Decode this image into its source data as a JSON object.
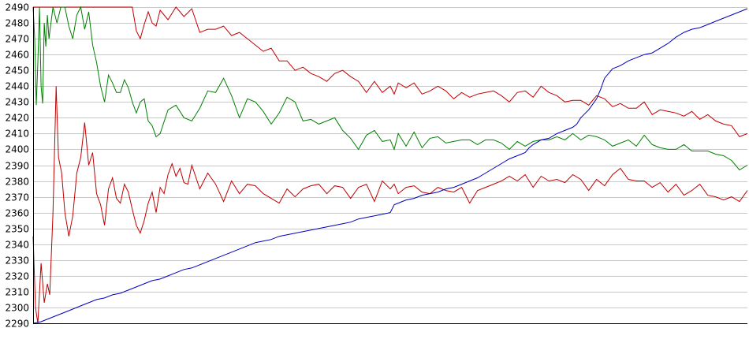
{
  "chart_data": {
    "type": "line",
    "title": "",
    "xlabel": "",
    "ylabel": "",
    "ylim": [
      2290,
      2490
    ],
    "xlim": [
      0,
      900
    ],
    "y_ticks": [
      2290,
      2300,
      2310,
      2320,
      2330,
      2340,
      2350,
      2360,
      2370,
      2380,
      2390,
      2400,
      2410,
      2420,
      2430,
      2440,
      2450,
      2460,
      2470,
      2480,
      2490
    ],
    "grid": "horizontal",
    "legend": "none",
    "series": [
      {
        "color": "#c00000",
        "x": [
          0,
          3,
          6,
          10,
          14,
          18,
          21,
          25,
          29,
          32,
          36,
          40,
          45,
          50,
          55,
          60,
          65,
          70,
          75,
          80,
          85,
          90,
          95,
          100,
          105,
          110,
          115,
          120,
          125,
          130,
          135,
          140,
          145,
          150,
          155,
          160,
          165,
          170,
          175,
          180,
          185,
          190,
          195,
          200,
          210,
          220,
          230,
          240,
          250,
          260,
          270,
          280,
          290,
          300,
          310,
          320,
          330,
          340,
          350,
          360,
          370,
          380,
          390,
          400,
          410,
          420,
          430,
          440,
          450,
          455,
          460,
          470,
          480,
          490,
          500,
          510,
          520,
          530,
          540,
          550,
          560,
          570,
          580,
          590,
          600,
          610,
          620,
          630,
          640,
          650,
          660,
          670,
          680,
          690,
          700,
          710,
          720,
          730,
          740,
          750,
          760,
          770,
          780,
          790,
          800,
          810,
          820,
          830,
          840,
          850,
          860,
          870,
          880,
          890,
          900
        ],
        "values": [
          2345,
          2300,
          2290,
          2328,
          2303,
          2315,
          2308,
          2360,
          2440,
          2395,
          2385,
          2360,
          2345,
          2358,
          2385,
          2395,
          2417,
          2390,
          2398,
          2372,
          2365,
          2352,
          2375,
          2382,
          2369,
          2366,
          2378,
          2373,
          2362,
          2352,
          2347,
          2355,
          2366,
          2373,
          2360,
          2376,
          2372,
          2384,
          2391,
          2383,
          2388,
          2379,
          2378,
          2390,
          2375,
          2385,
          2378,
          2367,
          2380,
          2372,
          2378,
          2377,
          2372,
          2369,
          2366,
          2375,
          2370,
          2375,
          2377,
          2378,
          2372,
          2377,
          2376,
          2369,
          2376,
          2378,
          2367,
          2380,
          2375,
          2378,
          2372,
          2376,
          2377,
          2373,
          2372,
          2376,
          2374,
          2373,
          2376,
          2366,
          2374,
          2376,
          2378,
          2380,
          2383,
          2380,
          2384,
          2376,
          2383,
          2380,
          2381,
          2379,
          2384,
          2381,
          2374,
          2381,
          2377,
          2384,
          2388,
          2381,
          2380,
          2380,
          2376,
          2379,
          2373,
          2378,
          2371,
          2374,
          2378,
          2371,
          2370,
          2368,
          2370,
          2367,
          2374
        ]
      },
      {
        "color": "#c00000",
        "x": [
          0,
          10,
          20,
          30,
          40,
          50,
          60,
          70,
          80,
          90,
          100,
          110,
          120,
          125,
          130,
          135,
          140,
          145,
          150,
          155,
          160,
          170,
          180,
          190,
          200,
          210,
          220,
          230,
          240,
          250,
          260,
          270,
          280,
          290,
          300,
          310,
          320,
          330,
          340,
          350,
          360,
          370,
          380,
          390,
          400,
          410,
          420,
          430,
          440,
          450,
          455,
          460,
          470,
          480,
          490,
          500,
          510,
          520,
          530,
          540,
          550,
          560,
          570,
          580,
          590,
          600,
          610,
          620,
          630,
          640,
          650,
          660,
          670,
          680,
          690,
          700,
          710,
          720,
          730,
          740,
          750,
          760,
          770,
          780,
          790,
          800,
          810,
          820,
          830,
          840,
          850,
          860,
          870,
          880,
          890,
          900
        ],
        "values": [
          2490,
          2490,
          2490,
          2490,
          2490,
          2490,
          2490,
          2490,
          2490,
          2490,
          2490,
          2490,
          2490,
          2490,
          2475,
          2470,
          2479,
          2487,
          2480,
          2478,
          2488,
          2482,
          2490,
          2484,
          2489,
          2474,
          2476,
          2476,
          2478,
          2472,
          2474,
          2470,
          2466,
          2462,
          2464,
          2456,
          2456,
          2450,
          2452,
          2448,
          2446,
          2443,
          2448,
          2450,
          2446,
          2443,
          2436,
          2443,
          2436,
          2440,
          2435,
          2442,
          2439,
          2442,
          2435,
          2437,
          2440,
          2437,
          2432,
          2436,
          2433,
          2435,
          2436,
          2437,
          2434,
          2430,
          2436,
          2437,
          2433,
          2440,
          2436,
          2434,
          2430,
          2431,
          2431,
          2428,
          2434,
          2432,
          2427,
          2429,
          2426,
          2426,
          2430,
          2422,
          2425,
          2424,
          2423,
          2421,
          2424,
          2419,
          2422,
          2418,
          2416,
          2415,
          2408,
          2410
        ]
      },
      {
        "color": "#008000",
        "x": [
          0,
          2,
          4,
          6,
          8,
          10,
          12,
          14,
          16,
          18,
          20,
          25,
          30,
          35,
          40,
          45,
          50,
          55,
          60,
          65,
          70,
          75,
          80,
          85,
          90,
          95,
          100,
          105,
          110,
          115,
          120,
          125,
          130,
          135,
          140,
          145,
          150,
          155,
          160,
          170,
          180,
          190,
          200,
          210,
          220,
          230,
          240,
          250,
          260,
          270,
          280,
          290,
          300,
          310,
          320,
          330,
          340,
          350,
          360,
          370,
          380,
          390,
          400,
          410,
          420,
          430,
          440,
          450,
          455,
          460,
          470,
          480,
          490,
          500,
          510,
          520,
          530,
          540,
          550,
          560,
          570,
          580,
          590,
          600,
          610,
          620,
          630,
          640,
          650,
          660,
          670,
          680,
          690,
          700,
          710,
          720,
          730,
          740,
          750,
          760,
          770,
          780,
          790,
          800,
          810,
          820,
          830,
          840,
          850,
          860,
          870,
          880,
          890,
          900
        ],
        "values": [
          2490,
          2470,
          2428,
          2455,
          2490,
          2440,
          2429,
          2480,
          2465,
          2485,
          2470,
          2490,
          2480,
          2490,
          2490,
          2478,
          2470,
          2485,
          2490,
          2476,
          2487,
          2466,
          2455,
          2440,
          2430,
          2447,
          2442,
          2436,
          2436,
          2444,
          2439,
          2430,
          2423,
          2430,
          2432,
          2418,
          2415,
          2408,
          2410,
          2425,
          2428,
          2420,
          2418,
          2426,
          2437,
          2436,
          2445,
          2434,
          2420,
          2432,
          2430,
          2424,
          2416,
          2423,
          2433,
          2430,
          2418,
          2419,
          2416,
          2418,
          2420,
          2412,
          2407,
          2400,
          2409,
          2412,
          2405,
          2406,
          2400,
          2410,
          2402,
          2411,
          2401,
          2407,
          2408,
          2404,
          2405,
          2406,
          2406,
          2403,
          2406,
          2406,
          2404,
          2400,
          2405,
          2402,
          2405,
          2406,
          2406,
          2408,
          2406,
          2410,
          2406,
          2409,
          2408,
          2406,
          2402,
          2404,
          2406,
          2402,
          2409,
          2403,
          2401,
          2400,
          2400,
          2403,
          2399,
          2399,
          2399,
          2397,
          2396,
          2393,
          2387,
          2390
        ]
      },
      {
        "color": "#0000c0",
        "x": [
          0,
          10,
          20,
          30,
          40,
          50,
          60,
          70,
          80,
          90,
          100,
          110,
          120,
          130,
          140,
          150,
          160,
          170,
          180,
          190,
          200,
          210,
          220,
          230,
          240,
          250,
          260,
          270,
          280,
          290,
          300,
          310,
          320,
          330,
          340,
          350,
          360,
          370,
          380,
          390,
          400,
          410,
          420,
          430,
          440,
          450,
          455,
          460,
          470,
          480,
          490,
          500,
          510,
          520,
          530,
          540,
          550,
          560,
          570,
          580,
          590,
          600,
          610,
          620,
          625,
          630,
          640,
          650,
          660,
          670,
          680,
          685,
          690,
          700,
          710,
          715,
          720,
          730,
          740,
          750,
          760,
          770,
          780,
          790,
          800,
          810,
          820,
          830,
          840,
          850,
          860,
          870,
          880,
          890,
          900
        ],
        "values": [
          2290,
          2291,
          2293,
          2295,
          2297,
          2299,
          2301,
          2303,
          2305,
          2306,
          2308,
          2309,
          2311,
          2313,
          2315,
          2317,
          2318,
          2320,
          2322,
          2324,
          2325,
          2327,
          2329,
          2331,
          2333,
          2335,
          2337,
          2339,
          2341,
          2342,
          2343,
          2345,
          2346,
          2347,
          2348,
          2349,
          2350,
          2351,
          2352,
          2353,
          2354,
          2356,
          2357,
          2358,
          2359,
          2360,
          2365,
          2366,
          2368,
          2369,
          2371,
          2372,
          2373,
          2375,
          2376,
          2378,
          2380,
          2382,
          2385,
          2388,
          2391,
          2394,
          2396,
          2398,
          2401,
          2403,
          2406,
          2407,
          2410,
          2412,
          2414,
          2416,
          2420,
          2425,
          2432,
          2438,
          2445,
          2451,
          2453,
          2456,
          2458,
          2460,
          2461,
          2464,
          2467,
          2471,
          2474,
          2476,
          2477,
          2479,
          2481,
          2483,
          2485,
          2487,
          2489
        ]
      }
    ]
  }
}
